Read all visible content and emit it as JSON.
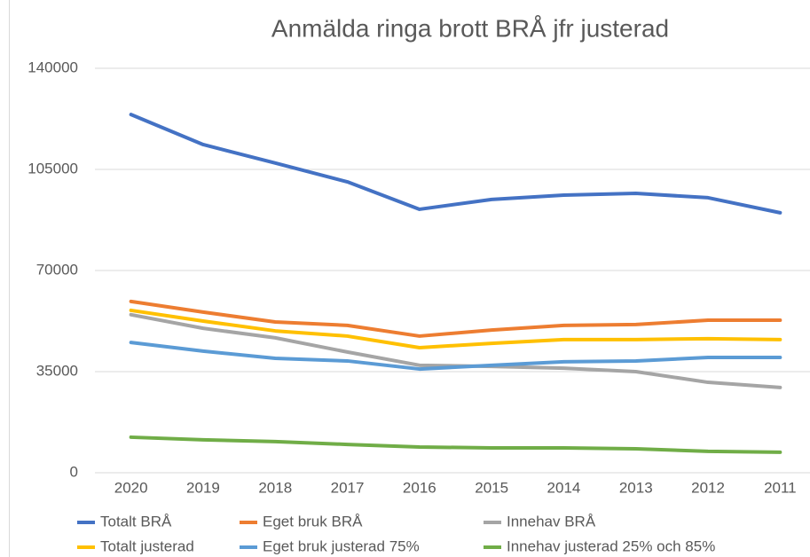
{
  "chart_data": {
    "type": "line",
    "title": "Anmälda ringa brott BRÅ jfr justerad",
    "categories": [
      "2020",
      "2019",
      "2018",
      "2017",
      "2016",
      "2015",
      "2014",
      "2013",
      "2012",
      "2011"
    ],
    "series": [
      {
        "name": "Totalt BRÅ",
        "color": "#4472c4",
        "values": [
          124000,
          113600,
          107200,
          100700,
          91200,
          94600,
          96100,
          96700,
          95200,
          90000
        ]
      },
      {
        "name": "Eget bruk BRÅ",
        "color": "#ed7d31",
        "values": [
          59300,
          55600,
          52200,
          51000,
          47300,
          49400,
          51000,
          51300,
          52800,
          52800
        ]
      },
      {
        "name": "Innehav BRÅ",
        "color": "#a5a5a5",
        "values": [
          54700,
          50000,
          46700,
          41800,
          37200,
          36800,
          36200,
          35000,
          31300,
          29500
        ]
      },
      {
        "name": "Totalt justerad",
        "color": "#ffc000",
        "values": [
          56200,
          52500,
          49100,
          47300,
          43300,
          44800,
          46100,
          46100,
          46400,
          46100
        ]
      },
      {
        "name": "Eget bruk justerad 75%",
        "color": "#5b9bd5",
        "values": [
          45100,
          42100,
          39600,
          38700,
          35900,
          37200,
          38400,
          38700,
          39900,
          39900
        ]
      },
      {
        "name": "Innehav justerad 25% och 85%",
        "color": "#70ad47",
        "values": [
          12300,
          11400,
          10800,
          9800,
          8900,
          8600,
          8600,
          8300,
          7400,
          7100
        ]
      }
    ],
    "ylim": [
      0,
      140000
    ],
    "yticks": [
      0,
      35000,
      70000,
      105000,
      140000
    ],
    "grid": true,
    "legend": "bottom"
  }
}
